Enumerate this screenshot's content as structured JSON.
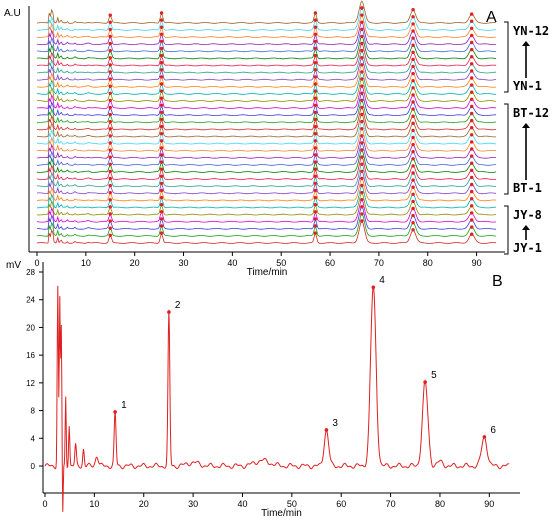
{
  "chart_data": [
    {
      "type": "line",
      "panel_label": "A",
      "ylabel": "A.U",
      "xlabel": "Time/min",
      "xlim": [
        0,
        95
      ],
      "xticks": [
        0,
        10,
        20,
        30,
        40,
        50,
        60,
        70,
        80,
        90
      ],
      "trace_count": 32,
      "peak_times": [
        15,
        25.5,
        57,
        66.5,
        77,
        89
      ],
      "peak_heights": [
        0.35,
        0.45,
        0.45,
        1.0,
        0.6,
        0.4
      ],
      "groups": [
        {
          "top": "YN-12",
          "bottom": "YN-1",
          "traces": 12
        },
        {
          "top": "BT-12",
          "bottom": "BT-1",
          "traces": 12
        },
        {
          "top": "JY-8",
          "bottom": "JY-1",
          "traces": 8
        }
      ],
      "colors": [
        "#d62728",
        "#1a9e1a",
        "#3b3bd6",
        "#d000d0",
        "#8c8c00",
        "#00b0b0",
        "#ff7f0e",
        "#7f3fbf",
        "#2a9d8f",
        "#e6194b",
        "#008000",
        "#4363d8",
        "#911eb4",
        "#f58231",
        "#42d4f4",
        "#9a6324"
      ]
    },
    {
      "type": "line",
      "panel_label": "B",
      "ylabel": "mV",
      "xlabel": "Time/min",
      "xlim": [
        0,
        95
      ],
      "ylim": [
        -4,
        28
      ],
      "xticks": [
        0,
        10,
        20,
        30,
        40,
        50,
        60,
        70,
        80,
        90
      ],
      "yticks": [
        0,
        4,
        8,
        12,
        16,
        20,
        24,
        28
      ],
      "color": "#e02020",
      "peaks": [
        {
          "label": "1",
          "x": 14.2,
          "y": 7.8
        },
        {
          "label": "2",
          "x": 25.1,
          "y": 22.2
        },
        {
          "label": "3",
          "x": 57.0,
          "y": 5.2
        },
        {
          "label": "4",
          "x": 66.5,
          "y": 25.8
        },
        {
          "label": "5",
          "x": 77.0,
          "y": 12.1
        },
        {
          "label": "6",
          "x": 89.0,
          "y": 4.2
        }
      ]
    }
  ]
}
